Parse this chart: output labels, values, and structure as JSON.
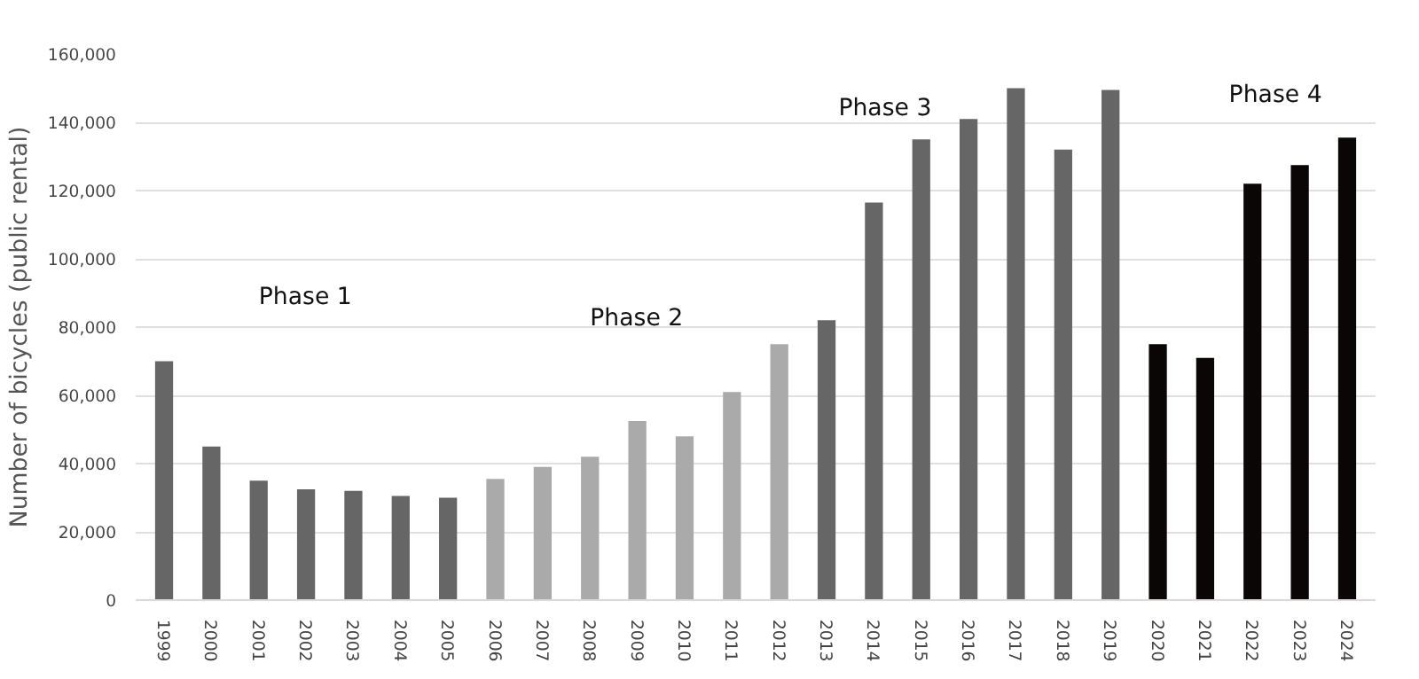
{
  "chart_data": {
    "type": "bar",
    "ylabel": "Number of bicycles (public rental)",
    "categories": [
      "1999",
      "2000",
      "2001",
      "2002",
      "2003",
      "2004",
      "2005",
      "2006",
      "2007",
      "2008",
      "2009",
      "2010",
      "2011",
      "2012",
      "2013",
      "2014",
      "2015",
      "2016",
      "2017",
      "2018",
      "2019",
      "2020",
      "2021",
      "2022",
      "2023",
      "2024"
    ],
    "values": [
      70000,
      45000,
      35000,
      32500,
      32000,
      30500,
      30000,
      35500,
      39000,
      42000,
      52500,
      48000,
      61000,
      75000,
      82000,
      116500,
      135000,
      141000,
      150000,
      132000,
      149500,
      75000,
      71000,
      122000,
      127500,
      135500
    ],
    "colors": [
      "#666666",
      "#666666",
      "#666666",
      "#666666",
      "#666666",
      "#666666",
      "#666666",
      "#aaaaaa",
      "#aaaaaa",
      "#aaaaaa",
      "#aaaaaa",
      "#aaaaaa",
      "#aaaaaa",
      "#aaaaaa",
      "#666666",
      "#666666",
      "#666666",
      "#666666",
      "#666666",
      "#666666",
      "#666666",
      "#0a0606",
      "#0a0606",
      "#0a0606",
      "#0a0606",
      "#0a0606"
    ],
    "ylim": [
      0,
      160000
    ],
    "yticks": [
      {
        "value": 0,
        "label": "0"
      },
      {
        "value": 20000,
        "label": "20,000"
      },
      {
        "value": 40000,
        "label": "40,000"
      },
      {
        "value": 60000,
        "label": "60,000"
      },
      {
        "value": 80000,
        "label": "80,000"
      },
      {
        "value": 100000,
        "label": "100,000"
      },
      {
        "value": 120000,
        "label": "120,000"
      },
      {
        "value": 140000,
        "label": "140,000"
      },
      {
        "value": 160000,
        "label": "160,000"
      }
    ],
    "grid": "y",
    "annotations": [
      "Phase 1",
      "Phase 2",
      "Phase 3",
      "Phase 4"
    ]
  }
}
